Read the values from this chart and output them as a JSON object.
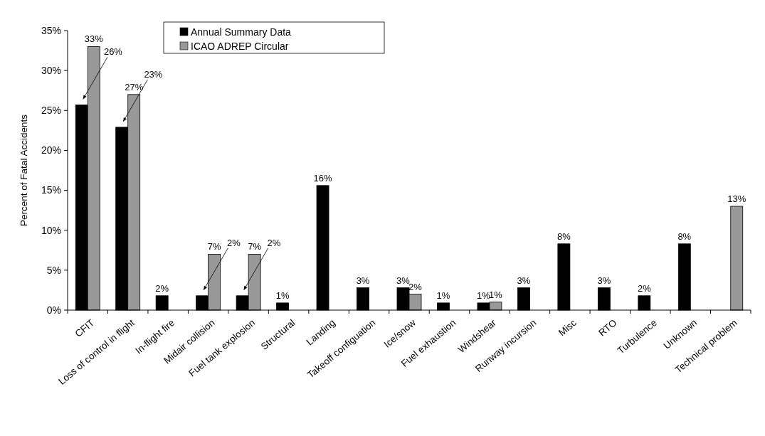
{
  "chart_data": {
    "type": "bar",
    "ylabel": "Percent of Fatal Accidents",
    "categories": [
      "CFIT",
      "Loss of control in flight",
      "In-flight fire",
      "Midair collision",
      "Fuel tank explosion",
      "Structural",
      "Landing",
      "Takeoff configuation",
      "Ice/snow",
      "Fuel exhaustion",
      "Windshear",
      "Runway incursion",
      "Misc",
      "RTO",
      "Turbulence",
      "Unknown",
      "Technical problem"
    ],
    "series": [
      {
        "name": "Annual Summary Data",
        "color": "#000000",
        "values": [
          25.7,
          22.9,
          1.8,
          1.8,
          1.8,
          0.9,
          15.6,
          2.8,
          2.8,
          0.9,
          0.9,
          2.8,
          8.3,
          2.8,
          1.8,
          8.3,
          null
        ],
        "value_labels": [
          "26%",
          "23%",
          "2%",
          "2%",
          "2%",
          "1%",
          "16%",
          "3%",
          "3%",
          "1%",
          "1%",
          "3%",
          "8%",
          "3%",
          "2%",
          "8%",
          null
        ]
      },
      {
        "name": "ICAO ADREP Circular",
        "color": "#999999",
        "values": [
          33,
          27,
          null,
          7,
          7,
          null,
          null,
          null,
          2.0,
          null,
          1.0,
          null,
          null,
          null,
          null,
          null,
          13
        ],
        "value_labels": [
          "33%",
          "27%",
          null,
          "7%",
          "7%",
          null,
          null,
          null,
          "2%",
          null,
          "1%",
          null,
          null,
          null,
          null,
          null,
          "13%"
        ]
      }
    ],
    "ylim": [
      0,
      35
    ],
    "yticks": [
      {
        "value": 0,
        "label": "0%"
      },
      {
        "value": 5,
        "label": "5%"
      },
      {
        "value": 10,
        "label": "10%"
      },
      {
        "value": 15,
        "label": "15%"
      },
      {
        "value": 20,
        "label": "20%"
      },
      {
        "value": 25,
        "label": "25%"
      },
      {
        "value": 30,
        "label": "30%"
      },
      {
        "value": 35,
        "label": "35%"
      }
    ],
    "grid": false,
    "legend": "top left"
  }
}
